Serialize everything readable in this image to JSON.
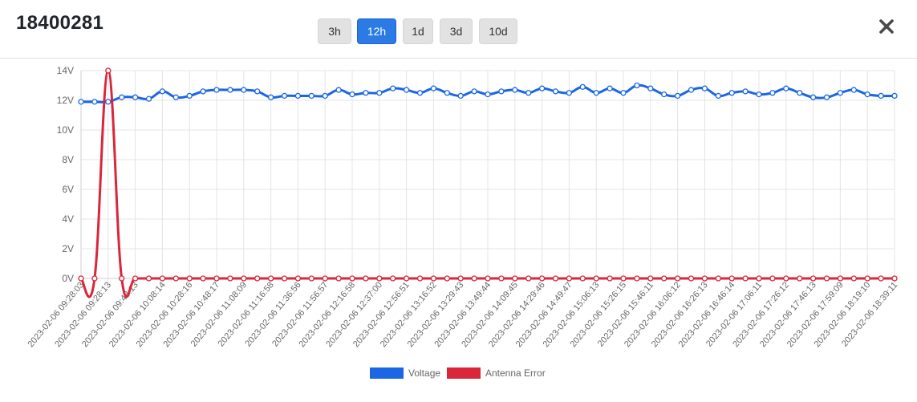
{
  "modal": {
    "title": "18400281",
    "close_icon": "close-icon",
    "range_buttons": [
      {
        "label": "3h",
        "active": false
      },
      {
        "label": "12h",
        "active": true
      },
      {
        "label": "1d",
        "active": false
      },
      {
        "label": "3d",
        "active": false
      },
      {
        "label": "10d",
        "active": false
      }
    ]
  },
  "chart_data": {
    "type": "line",
    "y_tick_labels": [
      "0V",
      "2V",
      "4V",
      "6V",
      "8V",
      "10V",
      "12V",
      "14V"
    ],
    "ylim": [
      0,
      14
    ],
    "x_tick_labels": [
      "2023-02-06 09:28:03",
      "2023-02-06 09:28:13",
      "2023-02-06 09:48:13",
      "2023-02-06 10:08:14",
      "2023-02-06 10:28:16",
      "2023-02-06 10:48:17",
      "2023-02-06 11:08:09",
      "2023-02-06 11:16:58",
      "2023-02-06 11:36:56",
      "2023-02-06 11:56:57",
      "2023-02-06 12:16:58",
      "2023-02-06 12:37:00",
      "2023-02-06 12:56:51",
      "2023-02-06 13:16:52",
      "2023-02-06 13:29:43",
      "2023-02-06 13:49:44",
      "2023-02-06 14:09:45",
      "2023-02-06 14:29:46",
      "2023-02-06 14:49:47",
      "2023-02-06 15:06:13",
      "2023-02-06 15:26:15",
      "2023-02-06 15:46:11",
      "2023-02-06 16:06:12",
      "2023-02-06 16:26:13",
      "2023-02-06 16:46:14",
      "2023-02-06 17:06:11",
      "2023-02-06 17:26:12",
      "2023-02-06 17:46:13",
      "2023-02-06 17:59:09",
      "2023-02-06 18:19:10",
      "2023-02-06 18:39:11"
    ],
    "grid": true,
    "legend_position": "bottom",
    "series": [
      {
        "name": "Voltage",
        "color": "#1a66e5",
        "values": [
          11.9,
          11.9,
          11.9,
          12.2,
          12.2,
          12.1,
          12.6,
          12.2,
          12.3,
          12.6,
          12.7,
          12.7,
          12.7,
          12.6,
          12.2,
          12.3,
          12.3,
          12.3,
          12.3,
          12.7,
          12.4,
          12.5,
          12.5,
          12.8,
          12.7,
          12.5,
          12.8,
          12.5,
          12.3,
          12.6,
          12.4,
          12.6,
          12.7,
          12.5,
          12.8,
          12.6,
          12.5,
          12.9,
          12.5,
          12.8,
          12.5,
          13.0,
          12.8,
          12.4,
          12.3,
          12.7,
          12.8,
          12.3,
          12.5,
          12.6,
          12.4,
          12.5,
          12.8,
          12.5,
          12.2,
          12.2,
          12.5,
          12.7,
          12.4,
          12.3,
          12.3
        ]
      },
      {
        "name": "Antenna Error",
        "color": "#d9263a",
        "values": [
          0,
          0,
          14,
          0,
          0,
          0,
          0,
          0,
          0,
          0,
          0,
          0,
          0,
          0,
          0,
          0,
          0,
          0,
          0,
          0,
          0,
          0,
          0,
          0,
          0,
          0,
          0,
          0,
          0,
          0,
          0,
          0,
          0,
          0,
          0,
          0,
          0,
          0,
          0,
          0,
          0,
          0,
          0,
          0,
          0,
          0,
          0,
          0,
          0,
          0,
          0,
          0,
          0,
          0,
          0,
          0,
          0,
          0,
          0,
          0,
          0
        ]
      }
    ]
  }
}
